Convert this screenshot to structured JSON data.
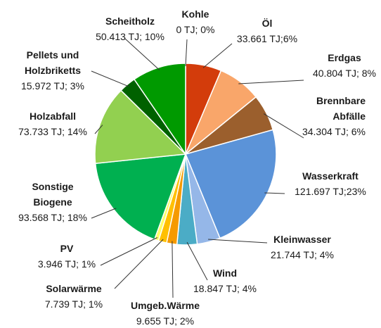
{
  "chart_data": {
    "type": "pie",
    "categories": [
      "Kohle",
      "Öl",
      "Erdgas",
      "Brennbare Abfälle",
      "Wasserkraft",
      "Kleinwasser",
      "Wind",
      "Umgeb.Wärme",
      "Solarwärme",
      "PV",
      "Sonstige Biogene",
      "Holzabfall",
      "Pellets und Holzbriketts",
      "Scheitholz"
    ],
    "values": [
      0,
      33661,
      40804,
      34304,
      121697,
      21744,
      18847,
      9655,
      7739,
      3946,
      93568,
      73733,
      15972,
      50413
    ],
    "value_labels": [
      "0 TJ; 0%",
      "33.661 TJ;6%",
      "40.804 TJ; 8%",
      "34.304 TJ; 6%",
      "121.697 TJ;23%",
      "21.744 TJ; 4%",
      "18.847 TJ; 4%",
      "9.655 TJ; 2%",
      "7.739 TJ; 1%",
      "3.946 TJ; 1%",
      "93.568 TJ; 18%",
      "73.733 TJ; 14%",
      "15.972 TJ; 3%",
      "50.413 TJ; 10%"
    ],
    "colors": [
      "#7f7f7f",
      "#d33c0b",
      "#f9a66a",
      "#9b5f2d",
      "#5b93d8",
      "#95b7e8",
      "#4bacc6",
      "#f59a00",
      "#ffc000",
      "#ffff66",
      "#00b050",
      "#92d050",
      "#006100",
      "#009a00"
    ]
  }
}
